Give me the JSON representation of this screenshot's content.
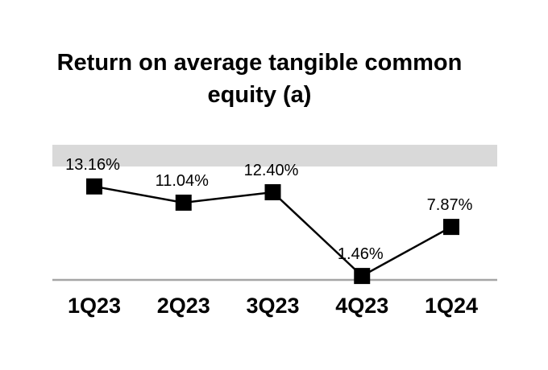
{
  "title": {
    "line1": "Return on average tangible common",
    "line2": "equity (a)"
  },
  "chart_data": {
    "type": "line",
    "title": "Return on average tangible common equity (a)",
    "categories": [
      "1Q23",
      "2Q23",
      "3Q23",
      "4Q23",
      "1Q24"
    ],
    "series": [
      {
        "name": "Return on average tangible common equity",
        "values": [
          13.16,
          11.04,
          12.4,
          1.46,
          7.87
        ]
      }
    ],
    "point_labels": [
      "13.16%",
      "11.04%",
      "12.40%",
      "1.46%",
      "7.87%"
    ],
    "xlabel": "",
    "ylabel": "",
    "ylim": [
      0,
      18.6
    ],
    "grid": false,
    "legend": "none",
    "marker_shape": "square",
    "annotations": [
      {
        "type": "highlight-band",
        "position": "upper-plot-area",
        "color": "#d9d9d9"
      }
    ],
    "colors": {
      "line": "#000000",
      "marker": "#000000",
      "data_label": "#000000",
      "axis_line": "#a6a6a6",
      "band": "#d9d9d9",
      "background": "#ffffff",
      "title": "#000000"
    }
  }
}
